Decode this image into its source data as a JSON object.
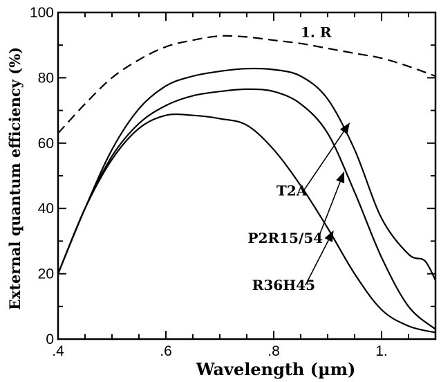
{
  "chart_data": {
    "type": "line",
    "title": "",
    "xlabel": "Wavelength (µm)",
    "ylabel": "External quantum efficiency (%)",
    "xlim": [
      0.4,
      1.1
    ],
    "ylim": [
      0,
      100
    ],
    "x_ticks": [
      ".4",
      ".6",
      ".8",
      "1."
    ],
    "y_ticks": [
      "0",
      "20",
      "40",
      "60",
      "80",
      "100"
    ],
    "grid": false,
    "series": [
      {
        "name": "1. R",
        "style": "dashed",
        "x": [
          0.4,
          0.45,
          0.5,
          0.55,
          0.6,
          0.65,
          0.7,
          0.75,
          0.8,
          0.85,
          0.9,
          0.95,
          1.0,
          1.05,
          1.1
        ],
        "y": [
          63,
          72,
          80,
          85.5,
          89.5,
          91.5,
          92.8,
          92.5,
          91.5,
          90.5,
          89,
          87.5,
          86,
          83.5,
          80.5
        ]
      },
      {
        "name": "T2A",
        "style": "solid",
        "x": [
          0.4,
          0.45,
          0.5,
          0.55,
          0.6,
          0.65,
          0.7,
          0.75,
          0.8,
          0.85,
          0.9,
          0.95,
          1.0,
          1.05,
          1.08,
          1.1
        ],
        "y": [
          20,
          40,
          58,
          70.5,
          77.5,
          80.5,
          82,
          82.8,
          82.5,
          80.5,
          73.5,
          58,
          37,
          26,
          24,
          18
        ]
      },
      {
        "name": "P2R15/54",
        "style": "solid",
        "x": [
          0.4,
          0.45,
          0.5,
          0.55,
          0.6,
          0.65,
          0.7,
          0.75,
          0.8,
          0.85,
          0.9,
          0.95,
          1.0,
          1.05,
          1.1
        ],
        "y": [
          20,
          40,
          56,
          66,
          71.5,
          74.5,
          75.8,
          76.5,
          75.8,
          72,
          63,
          45,
          25,
          10,
          3
        ]
      },
      {
        "name": "R36H45",
        "style": "solid",
        "x": [
          0.4,
          0.45,
          0.5,
          0.55,
          0.6,
          0.65,
          0.7,
          0.75,
          0.8,
          0.85,
          0.9,
          0.95,
          1.0,
          1.05,
          1.1
        ],
        "y": [
          20,
          40,
          55,
          64.5,
          68.5,
          68.5,
          67.5,
          65.5,
          58,
          47,
          34,
          20,
          9,
          4,
          2
        ]
      }
    ],
    "annotations": [
      {
        "text": "1. R",
        "x": 0.85,
        "y": 92.5
      },
      {
        "text": "T2A",
        "x": 0.805,
        "y": 44,
        "arrow_to": [
          0.94,
          66
        ]
      },
      {
        "text": "P2R15/54",
        "x": 0.752,
        "y": 29.5,
        "arrow_to": [
          0.93,
          51
        ]
      },
      {
        "text": "R36H45",
        "x": 0.76,
        "y": 15,
        "arrow_to": [
          0.91,
          33
        ]
      }
    ]
  }
}
